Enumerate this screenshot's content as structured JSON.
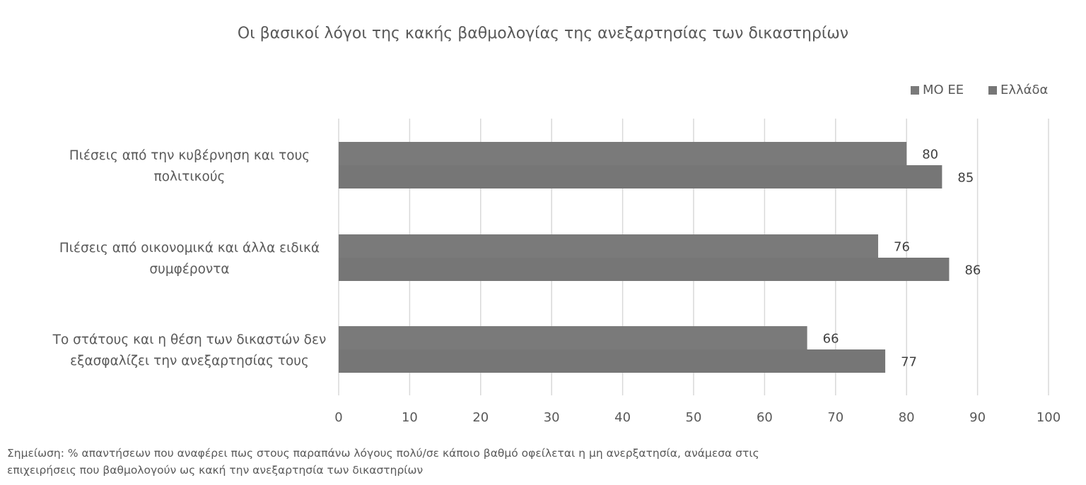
{
  "chart_data": {
    "type": "bar",
    "orientation": "horizontal",
    "title": "Οι βασικοί λόγοι της κακής βαθμολογίας της ανεξαρτησίας των δικαστηρίων",
    "categories": [
      [
        "Πιέσεις από την κυβέρνηση και τους",
        "πολιτικούς"
      ],
      [
        "Πιέσεις από οικονομικά και άλλα ειδικά",
        "συμφέροντα"
      ],
      [
        "Το στάτους και η θέση των δικαστών δεν",
        "εξασφαλίζει την ανεξαρτησίας τους"
      ]
    ],
    "series": [
      {
        "name": "ΜΟ ΕΕ",
        "values": [
          80,
          76,
          66
        ],
        "color": "#7a7a7a"
      },
      {
        "name": "Ελλάδα",
        "values": [
          85,
          86,
          77
        ],
        "color": "#767676"
      }
    ],
    "xlim": [
      0,
      100
    ],
    "x_ticks": [
      0,
      10,
      20,
      30,
      40,
      50,
      60,
      70,
      80,
      90,
      100
    ],
    "grid": true,
    "legend_position": "top-right",
    "data_labels": true
  },
  "note": {
    "line1": "Σημείωση: % απαντήσεων που αναφέρει πως στους παραπάνω λόγους πολύ/σε κάποιο βαθμό οφείλεται η μη ανερξατησία, ανάμεσα στις",
    "line2": "επιχειρήσεις που βαθμολογούν ως κακή την ανεξαρτησία των δικαστηρίων"
  }
}
